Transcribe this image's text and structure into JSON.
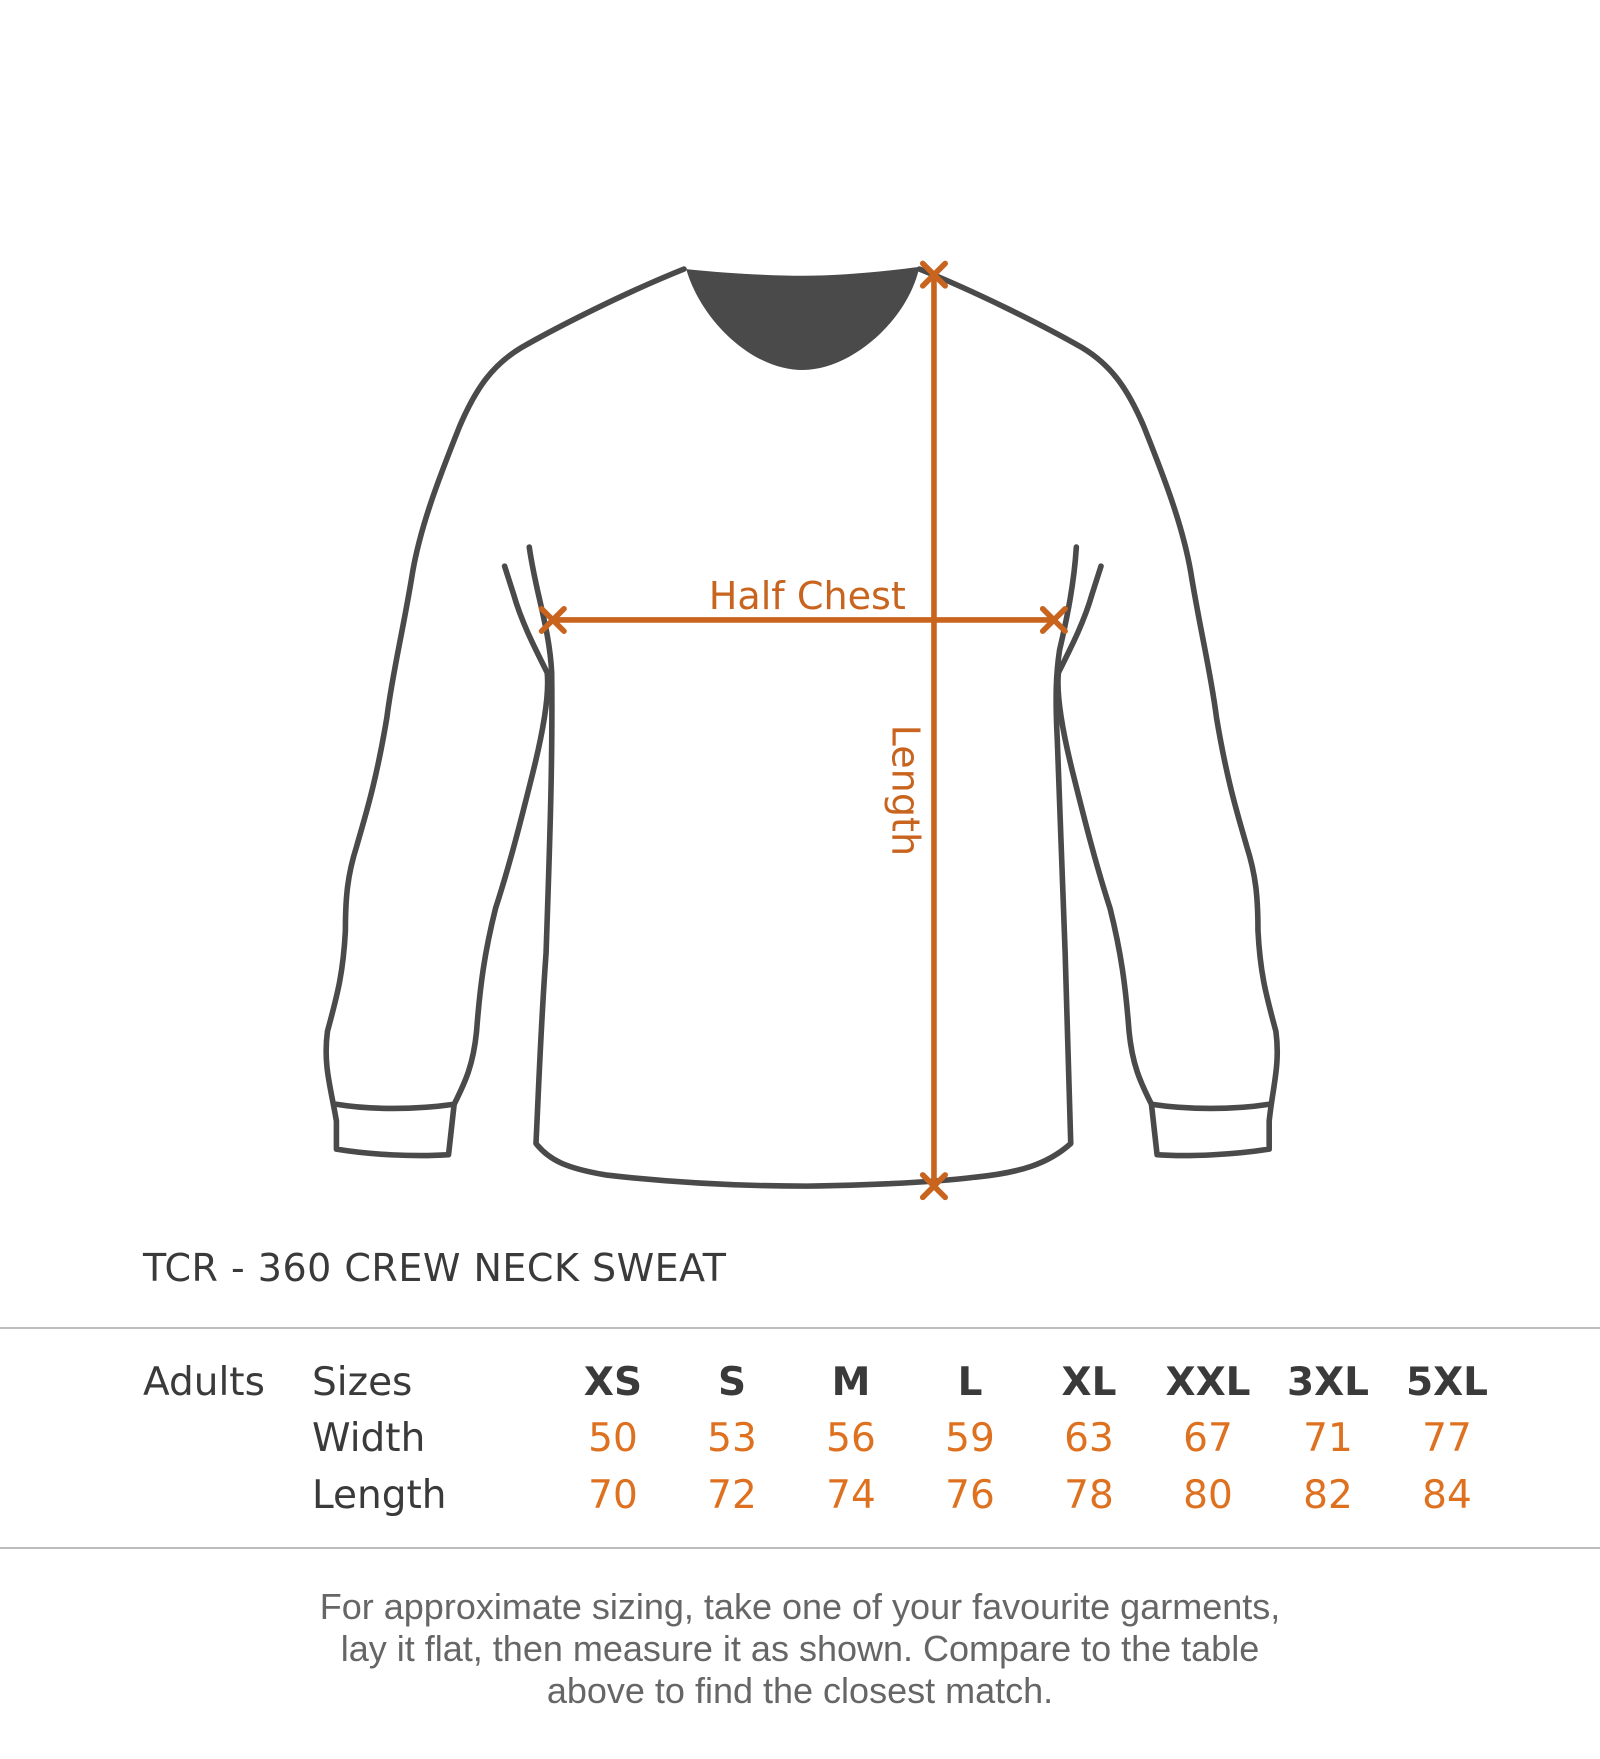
{
  "diagram": {
    "half_chest_label": "Half Chest",
    "length_label": "Length",
    "outline_color": "#4a4a4a",
    "measure_color": "#c8641e"
  },
  "title": "TCR - 360 CREW NECK SWEAT",
  "table": {
    "group_label": "Adults",
    "row_labels": {
      "sizes": "Sizes",
      "width": "Width",
      "length": "Length"
    },
    "sizes": [
      "XS",
      "S",
      "M",
      "L",
      "XL",
      "XXL",
      "3XL",
      "5XL"
    ],
    "width": [
      "50",
      "53",
      "56",
      "59",
      "63",
      "67",
      "71",
      "77"
    ],
    "length": [
      "70",
      "72",
      "74",
      "76",
      "78",
      "80",
      "82",
      "84"
    ],
    "value_color": "#de7120"
  },
  "footer": {
    "lines": [
      "For approximate sizing, take one of your favourite garments,",
      "lay it flat, then measure it as shown. Compare to the table",
      "above to find the closest match."
    ]
  }
}
